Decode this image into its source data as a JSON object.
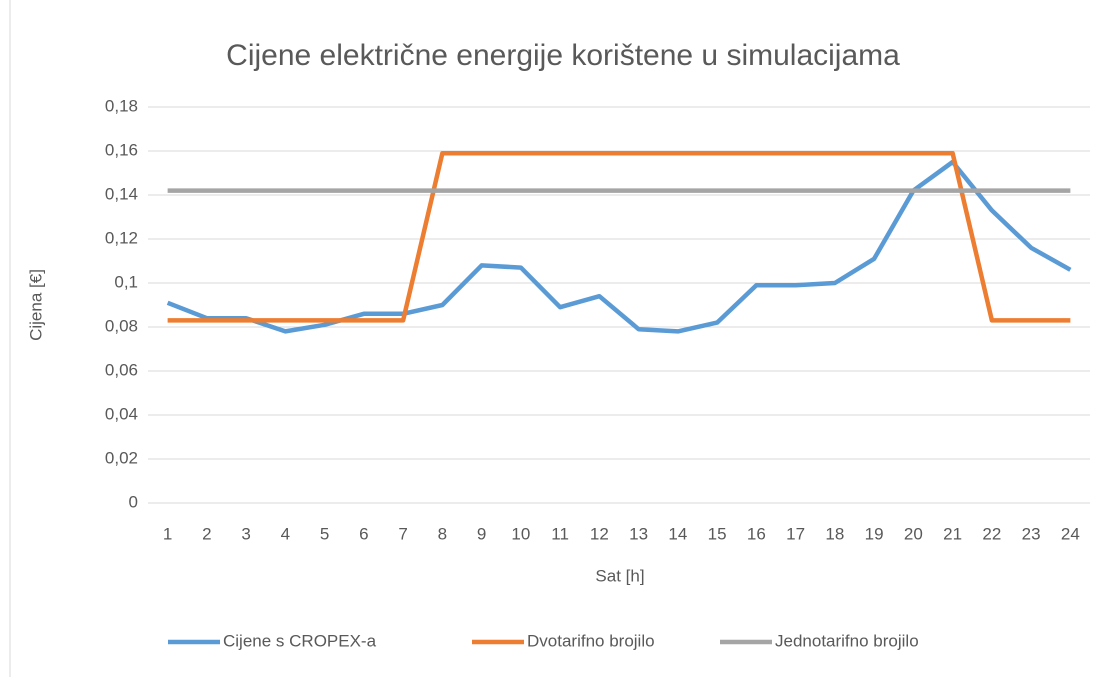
{
  "chart_data": {
    "type": "line",
    "title": "Cijene električne energije korištene u simulacijama",
    "xlabel": "Sat [h]",
    "ylabel": "Cijena [€]",
    "categories": [
      "1",
      "2",
      "3",
      "4",
      "5",
      "6",
      "7",
      "8",
      "9",
      "10",
      "11",
      "12",
      "13",
      "14",
      "15",
      "16",
      "17",
      "18",
      "19",
      "20",
      "21",
      "22",
      "23",
      "24"
    ],
    "series": [
      {
        "name": "Cijene s CROPEX-a",
        "color": "#5b9bd5",
        "values": [
          0.091,
          0.084,
          0.084,
          0.078,
          0.081,
          0.086,
          0.086,
          0.09,
          0.108,
          0.107,
          0.089,
          0.094,
          0.079,
          0.078,
          0.082,
          0.099,
          0.099,
          0.1,
          0.111,
          0.142,
          0.155,
          0.133,
          0.116,
          0.106
        ]
      },
      {
        "name": "Dvotarifno brojilo",
        "color": "#ed7d31",
        "values": [
          0.083,
          0.083,
          0.083,
          0.083,
          0.083,
          0.083,
          0.083,
          0.159,
          0.159,
          0.159,
          0.159,
          0.159,
          0.159,
          0.159,
          0.159,
          0.159,
          0.159,
          0.159,
          0.159,
          0.159,
          0.159,
          0.083,
          0.083,
          0.083
        ]
      },
      {
        "name": "Jednotarifno brojilo",
        "color": "#a5a5a5",
        "values": [
          0.142,
          0.142,
          0.142,
          0.142,
          0.142,
          0.142,
          0.142,
          0.142,
          0.142,
          0.142,
          0.142,
          0.142,
          0.142,
          0.142,
          0.142,
          0.142,
          0.142,
          0.142,
          0.142,
          0.142,
          0.142,
          0.142,
          0.142,
          0.142
        ]
      }
    ],
    "ylim": [
      0,
      0.18
    ],
    "yticks": [
      0,
      {
        "value": 0.02,
        "label": "0,02"
      },
      {
        "value": 0.04,
        "label": "0,04"
      },
      {
        "value": 0.06,
        "label": "0,06"
      },
      {
        "value": 0.08,
        "label": "0,08"
      },
      {
        "value": 0.1,
        "label": "0,1"
      },
      {
        "value": 0.12,
        "label": "0,12"
      },
      {
        "value": 0.14,
        "label": "0,14"
      },
      {
        "value": 0.16,
        "label": "0,16"
      },
      {
        "value": 0.18,
        "label": "0,18"
      }
    ],
    "grid": true,
    "legend": "bottom"
  }
}
